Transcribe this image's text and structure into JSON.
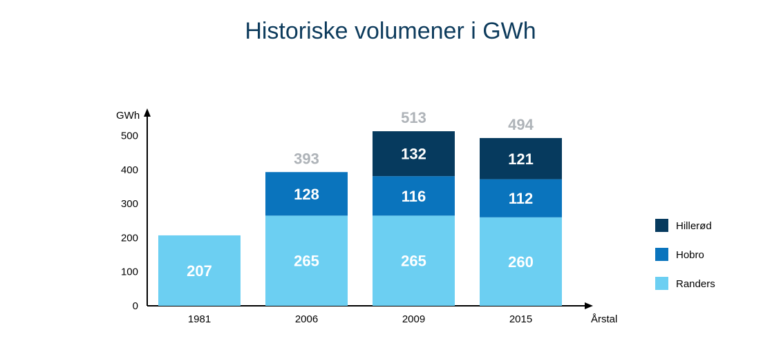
{
  "chart_data": {
    "type": "bar",
    "stacked": true,
    "title": "Historiske volumener i GWh",
    "ylabel": "GWh",
    "xlabel": "Årstal",
    "ylim": [
      0,
      560
    ],
    "yticks": [
      0,
      100,
      200,
      300,
      400,
      500
    ],
    "categories": [
      "1981",
      "2006",
      "2009",
      "2015"
    ],
    "series": [
      {
        "name": "Randers",
        "color": "#6ccff2",
        "values": [
          207,
          265,
          265,
          260
        ]
      },
      {
        "name": "Hobro",
        "color": "#0a74bd",
        "values": [
          0,
          128,
          116,
          112
        ]
      },
      {
        "name": "Hillerød",
        "color": "#063a5e",
        "values": [
          0,
          0,
          132,
          121
        ]
      }
    ],
    "totals": [
      null,
      393,
      513,
      494
    ],
    "legend_position": "right"
  }
}
